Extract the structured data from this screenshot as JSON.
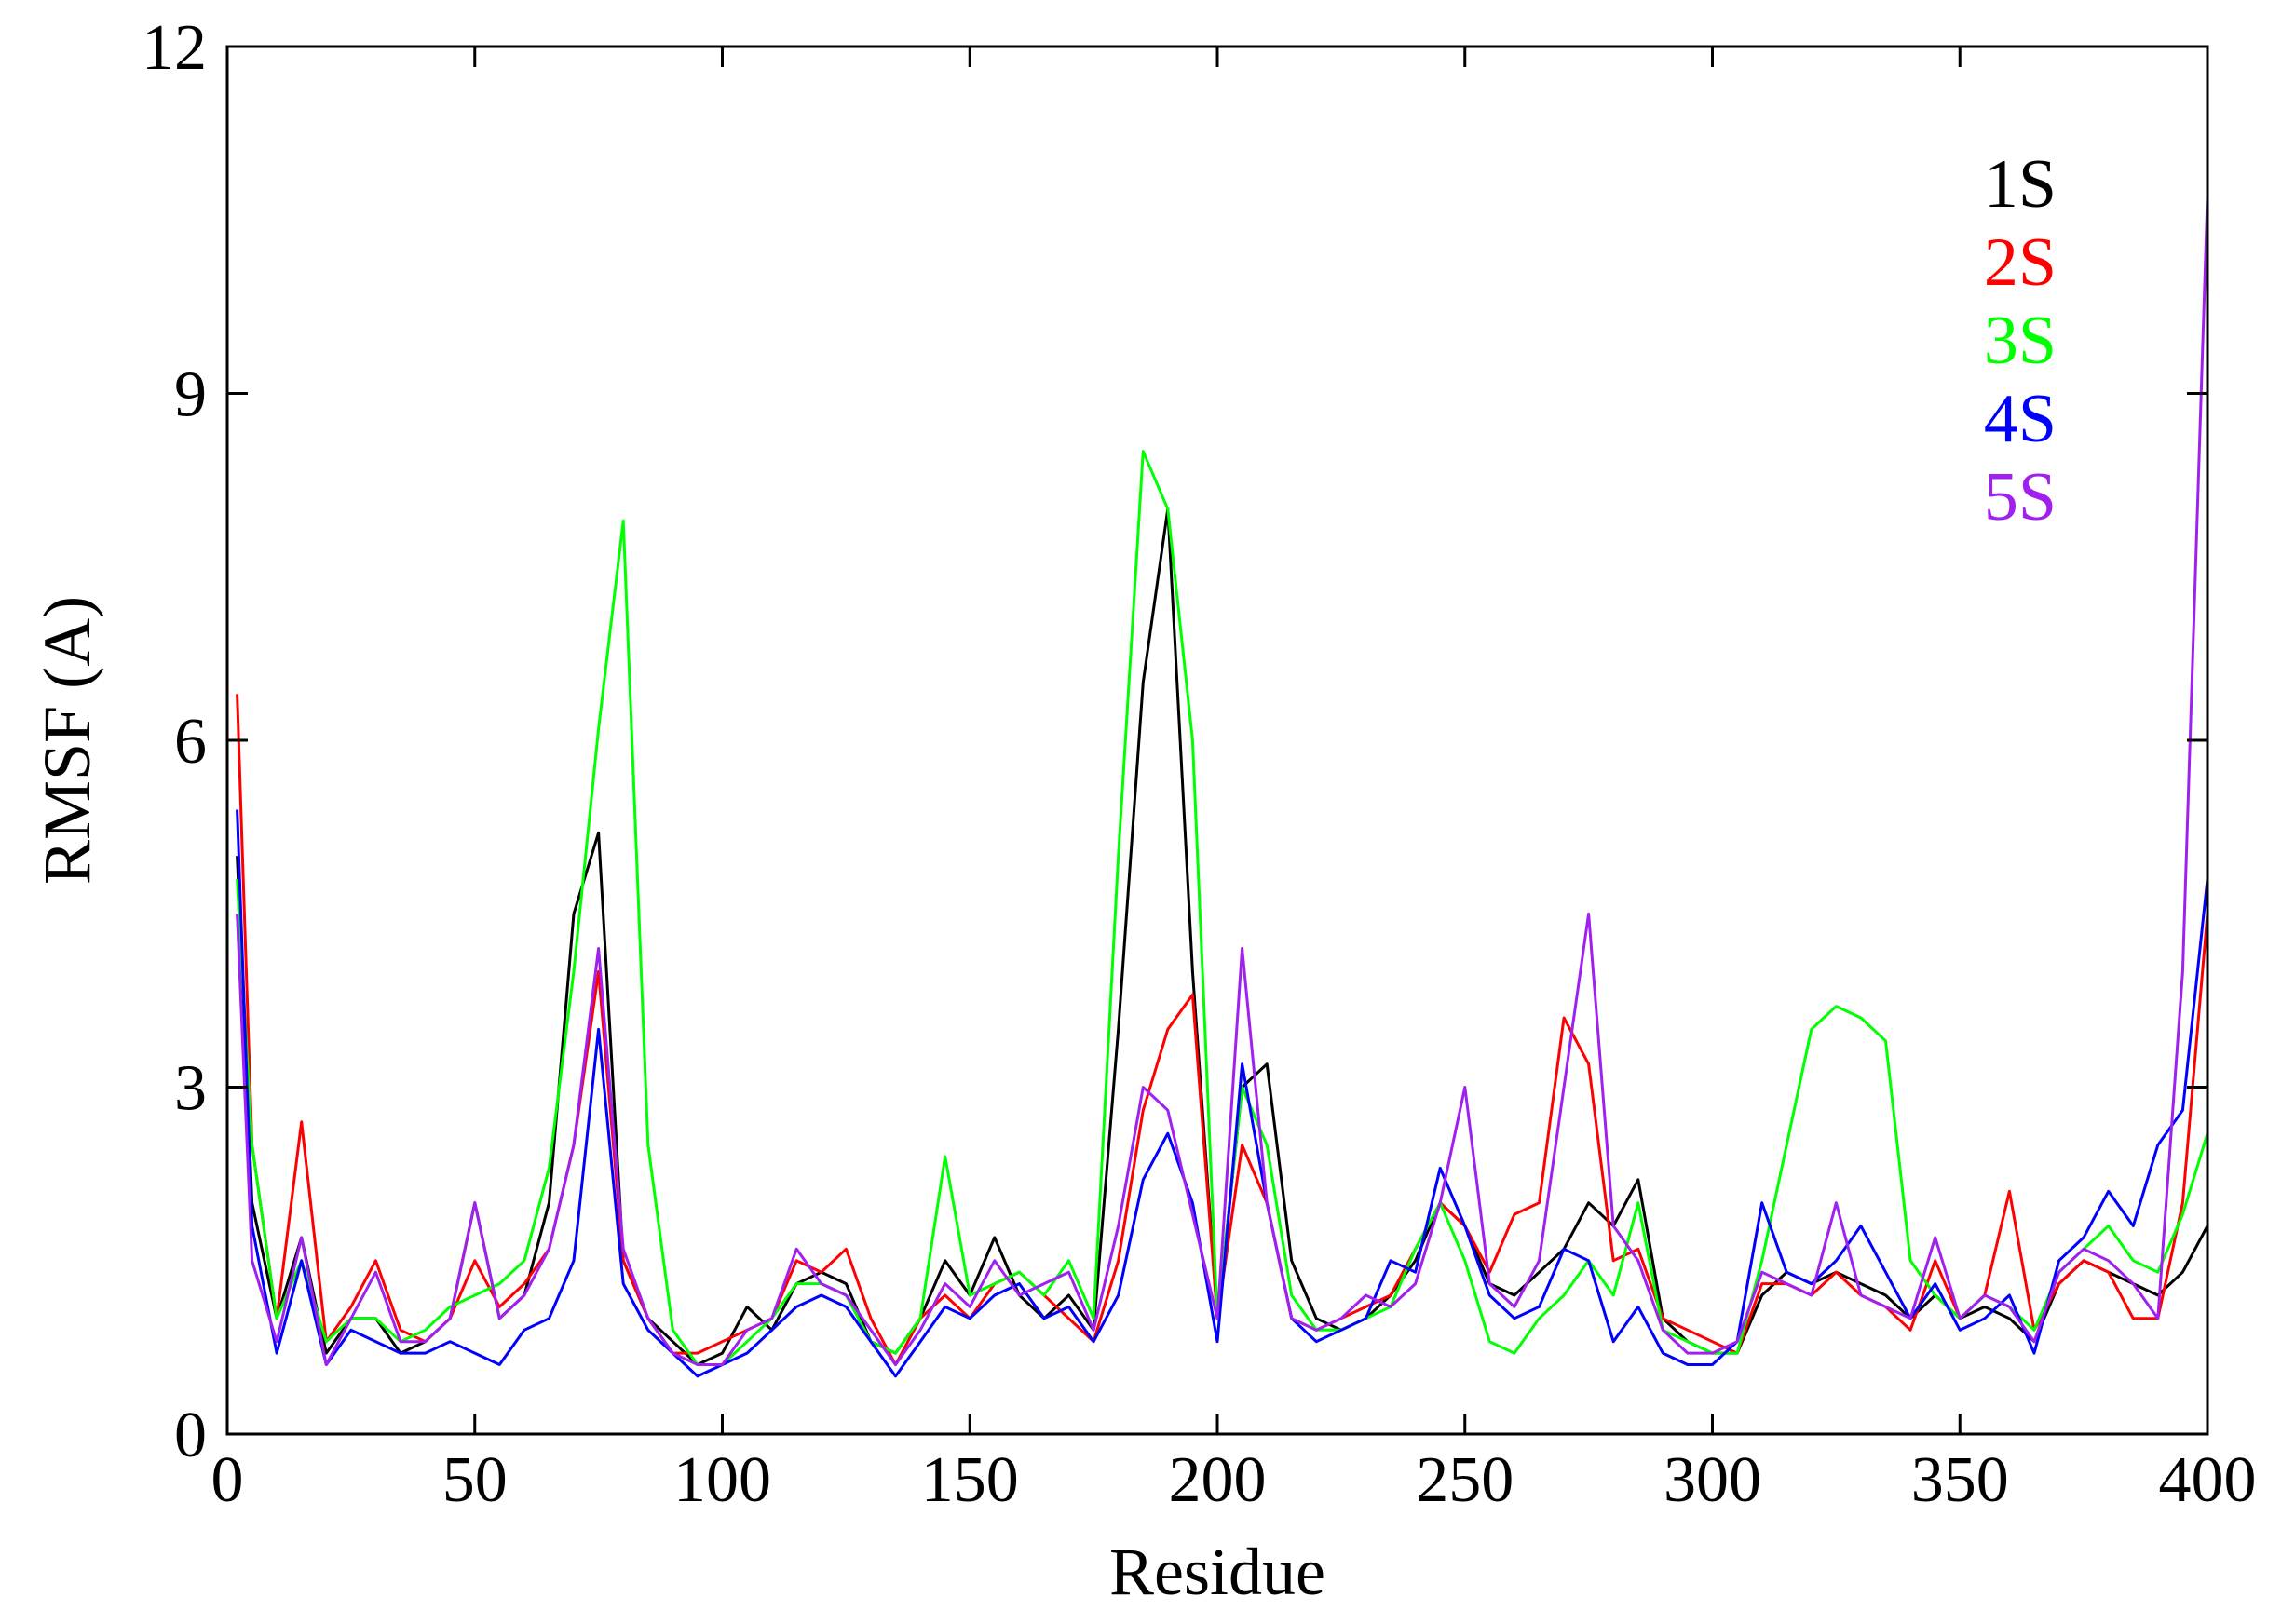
{
  "chart_data": {
    "type": "line",
    "xlabel": "Residue",
    "ylabel": "RMSF (A)",
    "xlim": [
      0,
      400
    ],
    "ylim": [
      0,
      12
    ],
    "xticks": [
      0,
      50,
      100,
      150,
      200,
      250,
      300,
      350,
      400
    ],
    "yticks": [
      0,
      3,
      6,
      9,
      12
    ],
    "legend": "upper right",
    "x": [
      2,
      5,
      10,
      15,
      20,
      25,
      30,
      35,
      40,
      45,
      50,
      55,
      60,
      65,
      70,
      75,
      80,
      85,
      90,
      95,
      100,
      105,
      110,
      115,
      120,
      125,
      130,
      135,
      140,
      145,
      150,
      155,
      160,
      165,
      170,
      175,
      180,
      185,
      190,
      195,
      200,
      205,
      210,
      215,
      220,
      225,
      230,
      235,
      240,
      245,
      250,
      255,
      260,
      265,
      270,
      275,
      280,
      285,
      290,
      295,
      300,
      305,
      310,
      315,
      320,
      325,
      330,
      335,
      340,
      345,
      350,
      355,
      360,
      365,
      370,
      375,
      380,
      385,
      390,
      395,
      400
    ],
    "series": [
      {
        "name": "1S",
        "color": "#000000",
        "values": [
          5.0,
          2.0,
          1.0,
          1.7,
          0.7,
          1.0,
          1.0,
          0.7,
          0.8,
          1.0,
          2.0,
          1.0,
          1.2,
          2.0,
          4.5,
          5.2,
          1.5,
          1.0,
          0.8,
          0.6,
          0.7,
          1.1,
          0.9,
          1.3,
          1.4,
          1.3,
          0.8,
          0.7,
          1.0,
          1.5,
          1.2,
          1.7,
          1.2,
          1.0,
          1.2,
          0.9,
          3.5,
          6.5,
          8.0,
          4.0,
          1.0,
          3.0,
          3.2,
          1.5,
          1.0,
          0.9,
          1.0,
          1.2,
          1.5,
          2.0,
          1.8,
          1.3,
          1.2,
          1.4,
          1.6,
          2.0,
          1.8,
          2.2,
          1.0,
          0.8,
          0.7,
          0.7,
          1.2,
          1.4,
          1.3,
          1.4,
          1.3,
          1.2,
          1.0,
          1.2,
          1.0,
          1.1,
          1.0,
          0.8,
          1.3,
          1.5,
          1.4,
          1.3,
          1.2,
          1.4,
          1.8
        ]
      },
      {
        "name": "2S",
        "color": "#ff0000",
        "values": [
          6.4,
          2.5,
          1.0,
          2.7,
          0.8,
          1.1,
          1.5,
          0.9,
          0.8,
          1.0,
          1.5,
          1.1,
          1.3,
          1.6,
          2.5,
          4.0,
          1.5,
          1.0,
          0.7,
          0.7,
          0.8,
          0.9,
          1.0,
          1.5,
          1.4,
          1.6,
          1.0,
          0.6,
          1.0,
          1.2,
          1.0,
          1.3,
          1.4,
          1.2,
          1.0,
          0.8,
          1.5,
          2.8,
          3.5,
          3.8,
          1.0,
          2.5,
          2.0,
          1.0,
          0.9,
          1.0,
          1.1,
          1.2,
          1.6,
          2.0,
          1.8,
          1.4,
          1.9,
          2.0,
          3.6,
          3.2,
          1.5,
          1.6,
          1.0,
          0.9,
          0.8,
          0.7,
          1.3,
          1.3,
          1.2,
          1.4,
          1.2,
          1.1,
          0.9,
          1.5,
          1.0,
          1.2,
          2.1,
          0.9,
          1.3,
          1.5,
          1.4,
          1.0,
          1.0,
          2.0,
          4.5
        ]
      },
      {
        "name": "3S",
        "color": "#00ff00",
        "values": [
          4.8,
          2.5,
          1.0,
          1.5,
          0.8,
          1.0,
          1.0,
          0.8,
          0.9,
          1.1,
          1.2,
          1.3,
          1.5,
          2.3,
          4.0,
          6.1,
          7.9,
          2.5,
          0.9,
          0.6,
          0.6,
          0.8,
          1.0,
          1.3,
          1.3,
          1.2,
          0.8,
          0.7,
          1.0,
          2.4,
          1.2,
          1.3,
          1.4,
          1.2,
          1.5,
          1.0,
          5.0,
          8.5,
          8.0,
          6.0,
          1.0,
          3.0,
          2.5,
          1.2,
          0.9,
          0.9,
          1.0,
          1.1,
          1.6,
          2.0,
          1.5,
          0.8,
          0.7,
          1.0,
          1.2,
          1.5,
          1.2,
          2.0,
          0.9,
          0.8,
          0.7,
          0.7,
          1.5,
          2.5,
          3.5,
          3.7,
          3.6,
          3.4,
          1.5,
          1.2,
          1.0,
          1.2,
          1.1,
          0.9,
          1.4,
          1.6,
          1.8,
          1.5,
          1.4,
          1.9,
          2.6
        ]
      },
      {
        "name": "4S",
        "color": "#0000ff",
        "values": [
          5.4,
          1.8,
          0.7,
          1.5,
          0.6,
          0.9,
          0.8,
          0.7,
          0.7,
          0.8,
          0.7,
          0.6,
          0.9,
          1.0,
          1.5,
          3.5,
          1.3,
          0.9,
          0.7,
          0.5,
          0.6,
          0.7,
          0.9,
          1.1,
          1.2,
          1.1,
          0.8,
          0.5,
          0.8,
          1.1,
          1.0,
          1.2,
          1.3,
          1.0,
          1.1,
          0.8,
          1.2,
          2.2,
          2.6,
          2.0,
          0.8,
          3.2,
          2.0,
          1.0,
          0.8,
          0.9,
          1.0,
          1.5,
          1.4,
          2.3,
          1.8,
          1.2,
          1.0,
          1.1,
          1.6,
          1.5,
          0.8,
          1.1,
          0.7,
          0.6,
          0.6,
          0.8,
          2.0,
          1.4,
          1.3,
          1.5,
          1.8,
          1.4,
          1.0,
          1.3,
          0.9,
          1.0,
          1.2,
          0.7,
          1.5,
          1.7,
          2.1,
          1.8,
          2.5,
          2.8,
          4.8
        ]
      },
      {
        "name": "5S",
        "color": "#a020f0",
        "values": [
          4.5,
          1.5,
          0.8,
          1.7,
          0.6,
          1.0,
          1.4,
          0.8,
          0.8,
          1.0,
          2.0,
          1.0,
          1.2,
          1.6,
          2.5,
          4.2,
          1.6,
          1.0,
          0.7,
          0.6,
          0.6,
          0.9,
          1.0,
          1.6,
          1.3,
          1.2,
          0.9,
          0.6,
          0.9,
          1.3,
          1.1,
          1.5,
          1.2,
          1.3,
          1.4,
          0.9,
          1.8,
          3.0,
          2.8,
          1.9,
          1.0,
          4.2,
          2.0,
          1.0,
          0.9,
          1.0,
          1.2,
          1.1,
          1.3,
          2.0,
          3.0,
          1.3,
          1.1,
          1.5,
          3.0,
          4.5,
          1.8,
          1.5,
          0.9,
          0.7,
          0.7,
          0.8,
          1.4,
          1.3,
          1.2,
          2.0,
          1.2,
          1.1,
          1.0,
          1.7,
          1.0,
          1.2,
          1.1,
          0.8,
          1.4,
          1.6,
          1.5,
          1.3,
          1.0,
          4.0,
          10.7
        ]
      }
    ]
  }
}
